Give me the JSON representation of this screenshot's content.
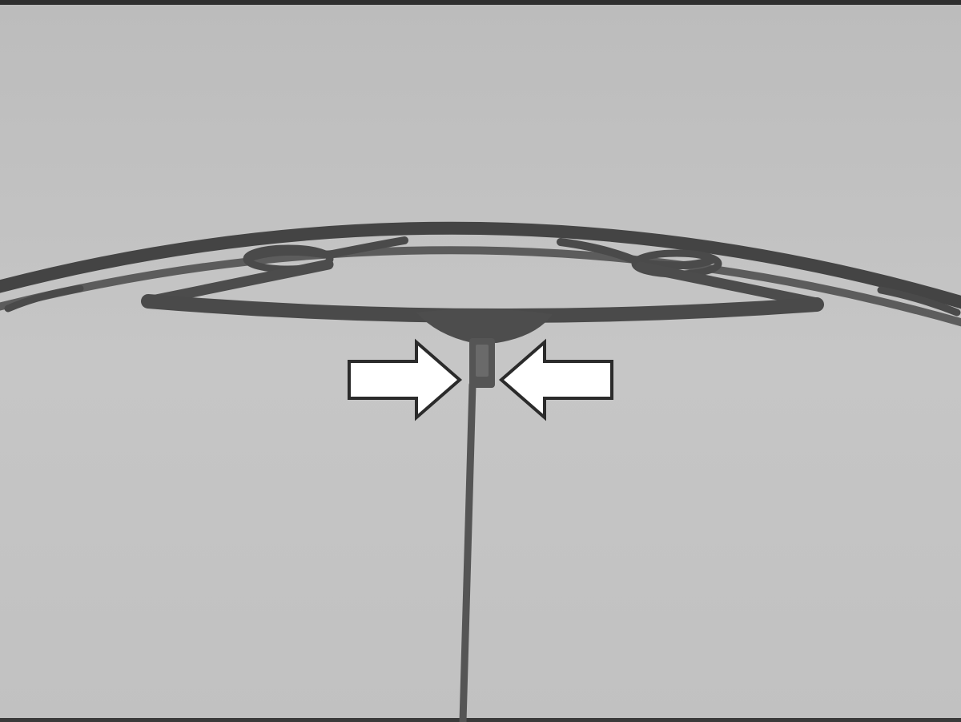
{
  "image": {
    "kind": "instructional-photo",
    "palette": {
      "background": "#c3c3c3",
      "frame": "#4b4b4b",
      "border": "#2f2f2f",
      "arrow_fill": "#ffffff",
      "arrow_stroke": "#2b2b2b"
    }
  },
  "annotations": {
    "arrows": [
      {
        "direction": "right",
        "icon": "arrow-right-icon"
      },
      {
        "direction": "left",
        "icon": "arrow-left-icon"
      }
    ]
  }
}
